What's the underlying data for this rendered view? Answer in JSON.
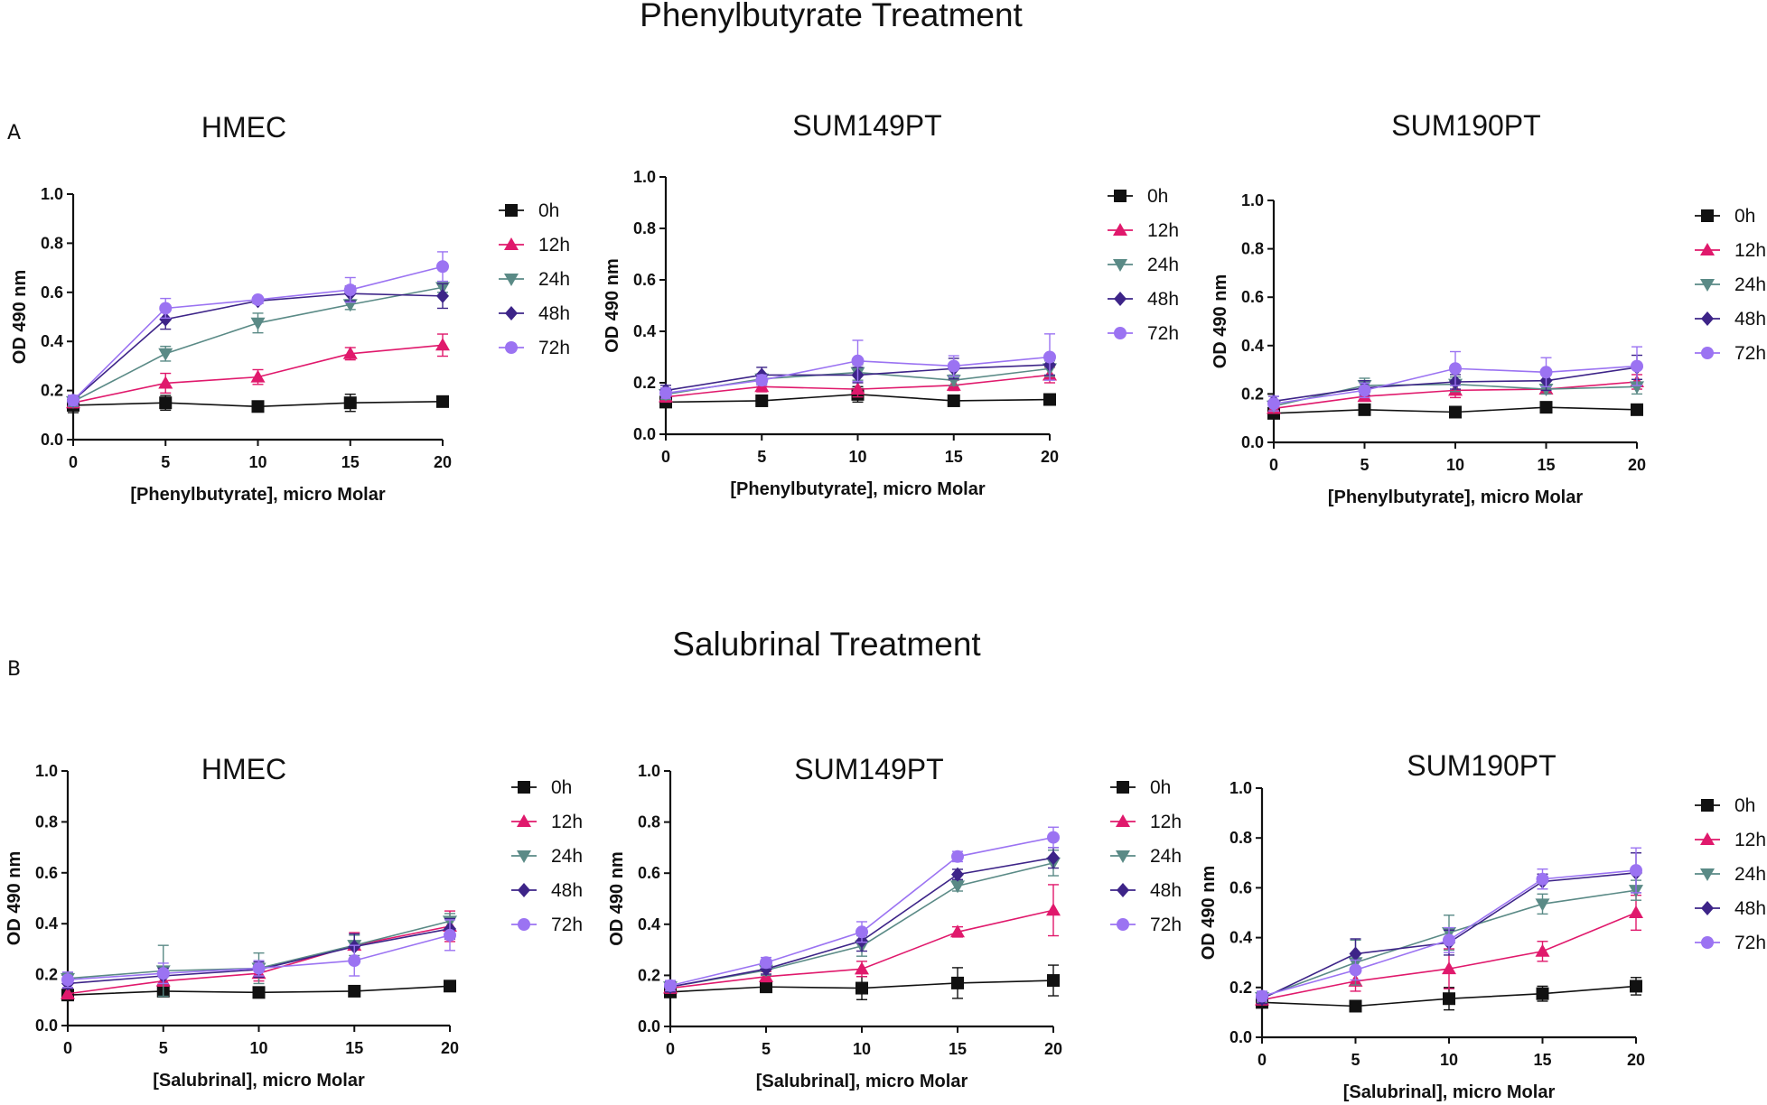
{
  "figure": {
    "section_a_title": "Phenylbutyrate Treatment",
    "section_a_letter": "A",
    "section_b_title": "Salubrinal Treatment",
    "section_b_letter": "B"
  },
  "chart_data": [
    {
      "id": "a1",
      "type": "line",
      "title": "HMEC",
      "xlabel": "[Phenylbutyrate], micro Molar",
      "ylabel": "OD 490 nm",
      "x": [
        0,
        5,
        10,
        15,
        20
      ],
      "xlim": [
        0,
        20
      ],
      "ylim": [
        0,
        1.0
      ],
      "xticks": [
        "0",
        "5",
        "10",
        "15",
        "20"
      ],
      "yticks": [
        "0.0",
        "0.2",
        "0.4",
        "0.6",
        "0.8",
        "1.0"
      ],
      "series": [
        {
          "name": "0h",
          "color": "#111111",
          "marker": "square",
          "values": [
            0.14,
            0.15,
            0.135,
            0.15,
            0.155
          ],
          "errors": [
            0.03,
            0.03,
            0.01,
            0.035,
            0.01
          ]
        },
        {
          "name": "12h",
          "color": "#e0196c",
          "marker": "triangle-up",
          "values": [
            0.15,
            0.23,
            0.255,
            0.35,
            0.385
          ],
          "errors": [
            0.02,
            0.04,
            0.03,
            0.025,
            0.045
          ]
        },
        {
          "name": "24h",
          "color": "#5a8a86",
          "marker": "triangle-down",
          "values": [
            0.155,
            0.35,
            0.475,
            0.55,
            0.62
          ],
          "errors": [
            0.02,
            0.03,
            0.04,
            0.02,
            0.02
          ]
        },
        {
          "name": "48h",
          "color": "#3d2488",
          "marker": "diamond",
          "values": [
            0.16,
            0.49,
            0.565,
            0.595,
            0.585
          ],
          "errors": [
            0.02,
            0.04,
            0.01,
            0.03,
            0.05
          ]
        },
        {
          "name": "72h",
          "color": "#9b73f2",
          "marker": "circle",
          "values": [
            0.16,
            0.535,
            0.57,
            0.61,
            0.705
          ],
          "errors": [
            0.02,
            0.04,
            0.01,
            0.05,
            0.06
          ]
        }
      ]
    },
    {
      "id": "a2",
      "type": "line",
      "title": "SUM149PT",
      "xlabel": "[Phenylbutyrate], micro Molar",
      "ylabel": "OD 490 nm",
      "x": [
        0,
        5,
        10,
        15,
        20
      ],
      "xlim": [
        0,
        20
      ],
      "ylim": [
        0,
        1.0
      ],
      "xticks": [
        "0",
        "5",
        "10",
        "15",
        "20"
      ],
      "yticks": [
        "0.0",
        "0.2",
        "0.4",
        "0.6",
        "0.8",
        "1.0"
      ],
      "series": [
        {
          "name": "0h",
          "color": "#111111",
          "marker": "square",
          "values": [
            0.125,
            0.13,
            0.155,
            0.13,
            0.135
          ],
          "errors": [
            0.02,
            0.01,
            0.03,
            0.01,
            0.02
          ]
        },
        {
          "name": "12h",
          "color": "#e0196c",
          "marker": "triangle-up",
          "values": [
            0.145,
            0.185,
            0.175,
            0.19,
            0.23
          ],
          "errors": [
            0.02,
            0.02,
            0.03,
            0.02,
            0.03
          ]
        },
        {
          "name": "24h",
          "color": "#5a8a86",
          "marker": "triangle-down",
          "values": [
            0.155,
            0.215,
            0.24,
            0.21,
            0.255
          ],
          "errors": [
            0.02,
            0.02,
            0.03,
            0.02,
            0.03
          ]
        },
        {
          "name": "48h",
          "color": "#3d2488",
          "marker": "diamond",
          "values": [
            0.17,
            0.23,
            0.23,
            0.255,
            0.27
          ],
          "errors": [
            0.02,
            0.03,
            0.03,
            0.04,
            0.04
          ]
        },
        {
          "name": "72h",
          "color": "#9b73f2",
          "marker": "circle",
          "values": [
            0.16,
            0.21,
            0.285,
            0.265,
            0.3
          ],
          "errors": [
            0.02,
            0.02,
            0.08,
            0.04,
            0.09
          ]
        }
      ]
    },
    {
      "id": "a3",
      "type": "line",
      "title": "SUM190PT",
      "xlabel": "[Phenylbutyrate], micro Molar",
      "ylabel": "OD 490 nm",
      "x": [
        0,
        5,
        10,
        15,
        20
      ],
      "xlim": [
        0,
        20
      ],
      "ylim": [
        0,
        1.0
      ],
      "xticks": [
        "0",
        "5",
        "10",
        "15",
        "20"
      ],
      "yticks": [
        "0.0",
        "0.2",
        "0.4",
        "0.6",
        "0.8",
        "1.0"
      ],
      "series": [
        {
          "name": "0h",
          "color": "#111111",
          "marker": "square",
          "values": [
            0.12,
            0.135,
            0.125,
            0.145,
            0.135
          ],
          "errors": [
            0.02,
            0.01,
            0.01,
            0.02,
            0.01
          ]
        },
        {
          "name": "12h",
          "color": "#e0196c",
          "marker": "triangle-up",
          "values": [
            0.14,
            0.19,
            0.215,
            0.22,
            0.25
          ],
          "errors": [
            0.02,
            0.02,
            0.03,
            0.02,
            0.03
          ]
        },
        {
          "name": "24h",
          "color": "#5a8a86",
          "marker": "triangle-down",
          "values": [
            0.15,
            0.235,
            0.24,
            0.22,
            0.23
          ],
          "errors": [
            0.02,
            0.03,
            0.03,
            0.02,
            0.03
          ]
        },
        {
          "name": "48h",
          "color": "#3d2488",
          "marker": "diamond",
          "values": [
            0.17,
            0.225,
            0.25,
            0.255,
            0.31
          ],
          "errors": [
            0.02,
            0.03,
            0.03,
            0.04,
            0.05
          ]
        },
        {
          "name": "72h",
          "color": "#9b73f2",
          "marker": "circle",
          "values": [
            0.16,
            0.215,
            0.305,
            0.29,
            0.315
          ],
          "errors": [
            0.03,
            0.03,
            0.07,
            0.06,
            0.08
          ]
        }
      ]
    },
    {
      "id": "b1",
      "type": "line",
      "title": "HMEC",
      "xlabel": "[Salubrinal], micro Molar",
      "ylabel": "OD 490 nm",
      "x": [
        0,
        5,
        10,
        15,
        20
      ],
      "xlim": [
        0,
        20
      ],
      "ylim": [
        0,
        1.0
      ],
      "xticks": [
        "0",
        "5",
        "10",
        "15",
        "20"
      ],
      "yticks": [
        "0.0",
        "0.2",
        "0.4",
        "0.6",
        "0.8",
        "1.0"
      ],
      "series": [
        {
          "name": "0h",
          "color": "#111111",
          "marker": "square",
          "values": [
            0.12,
            0.135,
            0.13,
            0.135,
            0.155
          ],
          "errors": [
            0.01,
            0.02,
            0.02,
            0.01,
            0.01
          ]
        },
        {
          "name": "12h",
          "color": "#e0196c",
          "marker": "triangle-up",
          "values": [
            0.125,
            0.175,
            0.205,
            0.315,
            0.39
          ],
          "errors": [
            0.02,
            0.02,
            0.03,
            0.05,
            0.06
          ]
        },
        {
          "name": "24h",
          "color": "#5a8a86",
          "marker": "triangle-down",
          "values": [
            0.185,
            0.215,
            0.225,
            0.315,
            0.41
          ],
          "errors": [
            0.02,
            0.1,
            0.06,
            0.04,
            0.03
          ]
        },
        {
          "name": "48h",
          "color": "#3d2488",
          "marker": "diamond",
          "values": [
            0.165,
            0.195,
            0.22,
            0.31,
            0.38
          ],
          "errors": [
            0.02,
            0.03,
            0.03,
            0.05,
            0.04
          ]
        },
        {
          "name": "72h",
          "color": "#9b73f2",
          "marker": "circle",
          "values": [
            0.18,
            0.205,
            0.225,
            0.255,
            0.355
          ],
          "errors": [
            0.03,
            0.04,
            0.03,
            0.06,
            0.06
          ]
        }
      ]
    },
    {
      "id": "b2",
      "type": "line",
      "title": "SUM149PT",
      "xlabel": "[Salubrinal], micro Molar",
      "ylabel": "OD 490 nm",
      "x": [
        0,
        5,
        10,
        15,
        20
      ],
      "xlim": [
        0,
        20
      ],
      "ylim": [
        0,
        1.0
      ],
      "xticks": [
        "0",
        "5",
        "10",
        "15",
        "20"
      ],
      "yticks": [
        "0.0",
        "0.2",
        "0.4",
        "0.6",
        "0.8",
        "1.0"
      ],
      "series": [
        {
          "name": "0h",
          "color": "#111111",
          "marker": "square",
          "values": [
            0.135,
            0.155,
            0.15,
            0.17,
            0.18
          ],
          "errors": [
            0.02,
            0.02,
            0.045,
            0.06,
            0.06
          ]
        },
        {
          "name": "12h",
          "color": "#e0196c",
          "marker": "triangle-up",
          "values": [
            0.15,
            0.195,
            0.225,
            0.37,
            0.455
          ],
          "errors": [
            0.02,
            0.02,
            0.03,
            0.02,
            0.1
          ]
        },
        {
          "name": "24h",
          "color": "#5a8a86",
          "marker": "triangle-down",
          "values": [
            0.155,
            0.22,
            0.315,
            0.55,
            0.64
          ],
          "errors": [
            0.02,
            0.02,
            0.04,
            0.02,
            0.05
          ]
        },
        {
          "name": "48h",
          "color": "#3d2488",
          "marker": "diamond",
          "values": [
            0.155,
            0.225,
            0.335,
            0.595,
            0.66
          ],
          "errors": [
            0.02,
            0.02,
            0.04,
            0.02,
            0.04
          ]
        },
        {
          "name": "72h",
          "color": "#9b73f2",
          "marker": "circle",
          "values": [
            0.16,
            0.25,
            0.37,
            0.665,
            0.74
          ],
          "errors": [
            0.02,
            0.02,
            0.04,
            0.02,
            0.04
          ]
        }
      ]
    },
    {
      "id": "b3",
      "type": "line",
      "title": "SUM190PT",
      "xlabel": "[Salubrinal], micro Molar",
      "ylabel": "OD 490 nm",
      "x": [
        0,
        5,
        10,
        15,
        20
      ],
      "xlim": [
        0,
        20
      ],
      "ylim": [
        0,
        1.0
      ],
      "xticks": [
        "0",
        "5",
        "10",
        "15",
        "20"
      ],
      "yticks": [
        "0.0",
        "0.2",
        "0.4",
        "0.6",
        "0.8",
        "1.0"
      ],
      "series": [
        {
          "name": "0h",
          "color": "#111111",
          "marker": "square",
          "values": [
            0.14,
            0.125,
            0.155,
            0.175,
            0.205
          ],
          "errors": [
            0.02,
            0.01,
            0.045,
            0.03,
            0.035
          ]
        },
        {
          "name": "12h",
          "color": "#e0196c",
          "marker": "triangle-up",
          "values": [
            0.15,
            0.225,
            0.275,
            0.345,
            0.5
          ],
          "errors": [
            0.02,
            0.04,
            0.08,
            0.04,
            0.07
          ]
        },
        {
          "name": "24h",
          "color": "#5a8a86",
          "marker": "triangle-down",
          "values": [
            0.16,
            0.3,
            0.42,
            0.535,
            0.59
          ],
          "errors": [
            0.02,
            0.09,
            0.07,
            0.04,
            0.04
          ]
        },
        {
          "name": "48h",
          "color": "#3d2488",
          "marker": "diamond",
          "values": [
            0.155,
            0.335,
            0.38,
            0.625,
            0.66
          ],
          "errors": [
            0.02,
            0.06,
            0.05,
            0.03,
            0.08
          ]
        },
        {
          "name": "72h",
          "color": "#9b73f2",
          "marker": "circle",
          "values": [
            0.165,
            0.27,
            0.39,
            0.635,
            0.67
          ],
          "errors": [
            0.02,
            0.04,
            0.05,
            0.04,
            0.09
          ]
        }
      ]
    }
  ]
}
